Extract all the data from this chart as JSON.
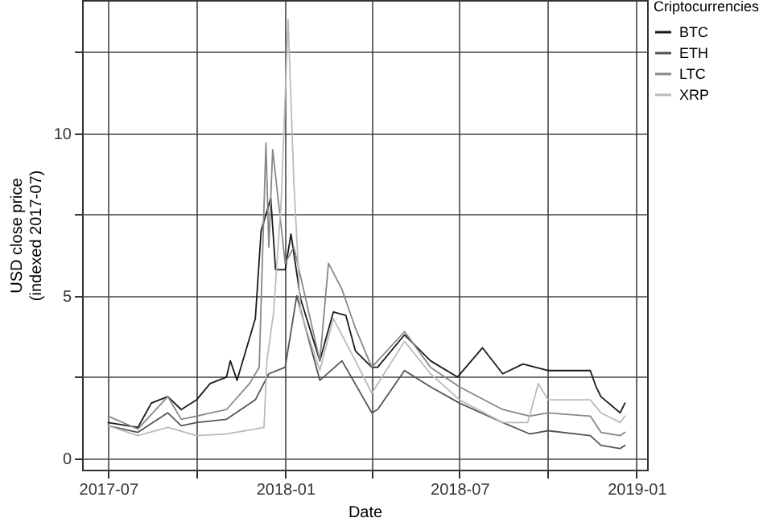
{
  "chart_data": {
    "type": "line",
    "xlabel": "Date",
    "ylabel": "USD close price\n(indexed 2017-07)",
    "legend_title": "Criptocurrencies",
    "legend": "right",
    "grid": true,
    "line_style": "solid",
    "marker": "none",
    "xlim": [
      "2017-06-04",
      "2019-01-12"
    ],
    "ylim": [
      -0.35,
      14.1
    ],
    "xticks": [
      {
        "value": "2017-07-01",
        "label": "2017-07"
      },
      {
        "value": "2017-10-01",
        "label": null
      },
      {
        "value": "2018-01-01",
        "label": "2018-01"
      },
      {
        "value": "2018-04-01",
        "label": null
      },
      {
        "value": "2018-07-01",
        "label": "2018-07"
      },
      {
        "value": "2018-10-01",
        "label": null
      },
      {
        "value": "2019-01-01",
        "label": "2019-01"
      }
    ],
    "yticks": [
      0,
      {
        "value": 2.5,
        "label": null
      },
      5,
      {
        "value": 7.5,
        "label": null
      },
      10,
      {
        "value": 12.5,
        "label": null
      }
    ],
    "series": [
      {
        "name": "BTC",
        "color": "#1a1a1a",
        "x": [
          "2017-07-01",
          "2017-08-01",
          "2017-08-15",
          "2017-09-01",
          "2017-09-15",
          "2017-10-01",
          "2017-10-15",
          "2017-11-01",
          "2017-11-05",
          "2017-11-12",
          "2017-12-01",
          "2017-12-07",
          "2017-12-17",
          "2017-12-22",
          "2018-01-01",
          "2018-01-07",
          "2018-01-17",
          "2018-02-06",
          "2018-02-20",
          "2018-03-05",
          "2018-03-15",
          "2018-04-01",
          "2018-04-07",
          "2018-05-05",
          "2018-06-01",
          "2018-06-29",
          "2018-07-25",
          "2018-08-15",
          "2018-09-05",
          "2018-10-01",
          "2018-11-14",
          "2018-11-20",
          "2018-11-25",
          "2018-12-15",
          "2018-12-20"
        ],
        "values": [
          1.1,
          0.95,
          1.7,
          1.9,
          1.5,
          1.8,
          2.3,
          2.5,
          3.0,
          2.4,
          4.3,
          7.0,
          8.0,
          5.8,
          5.8,
          6.9,
          4.9,
          3.0,
          4.5,
          4.4,
          3.3,
          2.8,
          2.8,
          3.8,
          3.0,
          2.5,
          3.4,
          2.6,
          2.9,
          2.7,
          2.7,
          2.2,
          1.9,
          1.4,
          1.7
        ]
      },
      {
        "name": "ETH",
        "color": "#555555",
        "x": [
          "2017-07-01",
          "2017-08-01",
          "2017-09-01",
          "2017-09-15",
          "2017-10-01",
          "2017-11-01",
          "2017-12-01",
          "2017-12-15",
          "2018-01-01",
          "2018-01-13",
          "2018-02-06",
          "2018-03-01",
          "2018-04-01",
          "2018-04-07",
          "2018-05-05",
          "2018-06-01",
          "2018-07-01",
          "2018-08-15",
          "2018-09-12",
          "2018-10-01",
          "2018-11-14",
          "2018-11-25",
          "2018-12-15",
          "2018-12-20"
        ],
        "values": [
          1.0,
          0.8,
          1.4,
          1.0,
          1.1,
          1.2,
          1.8,
          2.6,
          2.8,
          5.0,
          2.4,
          3.0,
          1.4,
          1.5,
          2.7,
          2.2,
          1.7,
          1.1,
          0.75,
          0.85,
          0.7,
          0.4,
          0.3,
          0.4
        ]
      },
      {
        "name": "LTC",
        "color": "#888888",
        "x": [
          "2017-07-01",
          "2017-08-01",
          "2017-09-01",
          "2017-09-15",
          "2017-10-01",
          "2017-11-01",
          "2017-11-25",
          "2017-12-05",
          "2017-12-12",
          "2017-12-15",
          "2017-12-19",
          "2018-01-01",
          "2018-01-10",
          "2018-02-06",
          "2018-02-15",
          "2018-03-01",
          "2018-03-15",
          "2018-04-01",
          "2018-05-05",
          "2018-06-01",
          "2018-07-01",
          "2018-08-15",
          "2018-09-12",
          "2018-10-01",
          "2018-11-14",
          "2018-11-25",
          "2018-12-15",
          "2018-12-20"
        ],
        "values": [
          1.3,
          0.9,
          1.9,
          1.2,
          1.3,
          1.5,
          2.3,
          2.8,
          9.7,
          6.5,
          9.5,
          6.0,
          6.5,
          3.0,
          6.0,
          5.2,
          4.0,
          2.8,
          3.9,
          2.8,
          2.2,
          1.5,
          1.3,
          1.4,
          1.3,
          0.8,
          0.7,
          0.8
        ]
      },
      {
        "name": "XRP",
        "color": "#bbbbbb",
        "x": [
          "2017-07-01",
          "2017-08-01",
          "2017-09-01",
          "2017-10-01",
          "2017-11-01",
          "2017-12-01",
          "2017-12-10",
          "2017-12-13",
          "2017-12-20",
          "2017-12-28",
          "2018-01-04",
          "2018-01-10",
          "2018-01-17",
          "2018-02-06",
          "2018-02-20",
          "2018-03-15",
          "2018-04-01",
          "2018-05-05",
          "2018-06-01",
          "2018-07-01",
          "2018-08-15",
          "2018-09-10",
          "2018-09-21",
          "2018-10-01",
          "2018-11-14",
          "2018-11-25",
          "2018-12-15",
          "2018-12-20"
        ],
        "values": [
          1.0,
          0.7,
          0.95,
          0.7,
          0.75,
          0.9,
          0.95,
          3.0,
          4.5,
          8.0,
          13.5,
          8.5,
          4.5,
          2.7,
          4.3,
          3.0,
          2.0,
          3.6,
          2.6,
          1.8,
          1.1,
          1.1,
          2.3,
          1.8,
          1.8,
          1.4,
          1.1,
          1.3
        ]
      }
    ]
  }
}
